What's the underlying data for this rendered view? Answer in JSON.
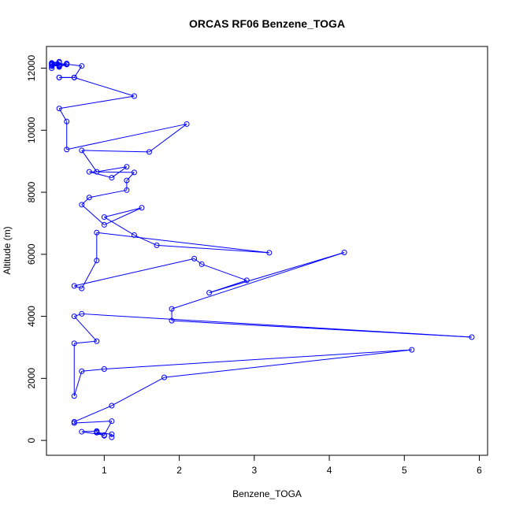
{
  "chart_data": {
    "type": "line",
    "title": "ORCAS RF06 Benzene_TOGA",
    "xlabel": "Benzene_TOGA",
    "ylabel": "Altitude (m)",
    "xlim": [
      0.23,
      6.11
    ],
    "ylim": [
      -480,
      12700
    ],
    "x_ticks": [
      1,
      2,
      3,
      4,
      5,
      6
    ],
    "y_ticks": [
      0,
      2000,
      4000,
      6000,
      8000,
      10000,
      12000
    ],
    "color": "#0000ff",
    "grid": false,
    "series": [
      {
        "x": [
          1.1,
          1.1,
          0.9,
          1.0,
          0.9,
          0.9,
          0.7,
          1.0,
          1.1,
          0.6,
          0.6,
          1.1,
          1.8,
          5.1,
          1.0,
          0.7,
          0.6,
          0.6,
          0.9,
          0.6,
          0.7,
          5.9,
          1.9,
          1.9,
          4.2,
          2.4,
          2.9,
          2.3,
          2.2,
          0.6,
          0.7,
          0.9,
          0.9,
          3.2,
          1.7,
          1.4,
          1.0,
          1.5,
          1.0,
          0.7,
          0.8,
          1.3,
          1.3,
          1.4,
          0.8,
          1.1,
          1.3,
          0.9,
          0.7,
          1.6,
          2.1,
          0.5,
          0.5,
          0.4,
          1.4,
          0.6,
          0.4,
          0.4,
          0.6,
          0.7,
          0.5,
          0.3,
          0.4,
          0.3,
          0.4,
          0.3,
          0.4,
          0.3,
          0.5,
          0.4,
          0.3,
          0.4,
          0.3,
          0.5,
          0.4
        ],
        "y": [
          100,
          200,
          250,
          150,
          280,
          300,
          280,
          170,
          620,
          560,
          600,
          1120,
          2030,
          2920,
          2300,
          2230,
          1430,
          3130,
          3200,
          4000,
          4080,
          3330,
          3860,
          4240,
          6060,
          4760,
          5160,
          5680,
          5860,
          4980,
          4900,
          5800,
          6700,
          6050,
          6290,
          6620,
          7200,
          7500,
          6950,
          7600,
          7830,
          8070,
          8380,
          8640,
          8660,
          8470,
          8820,
          8660,
          9350,
          9300,
          10200,
          9380,
          10280,
          10700,
          11100,
          11700,
          11700,
          11700,
          11700,
          12070,
          12130,
          12170,
          12210,
          12000,
          12180,
          12150,
          12100,
          12060,
          12150,
          12080,
          12130,
          12060,
          12100,
          12120,
          12040
        ]
      }
    ]
  }
}
